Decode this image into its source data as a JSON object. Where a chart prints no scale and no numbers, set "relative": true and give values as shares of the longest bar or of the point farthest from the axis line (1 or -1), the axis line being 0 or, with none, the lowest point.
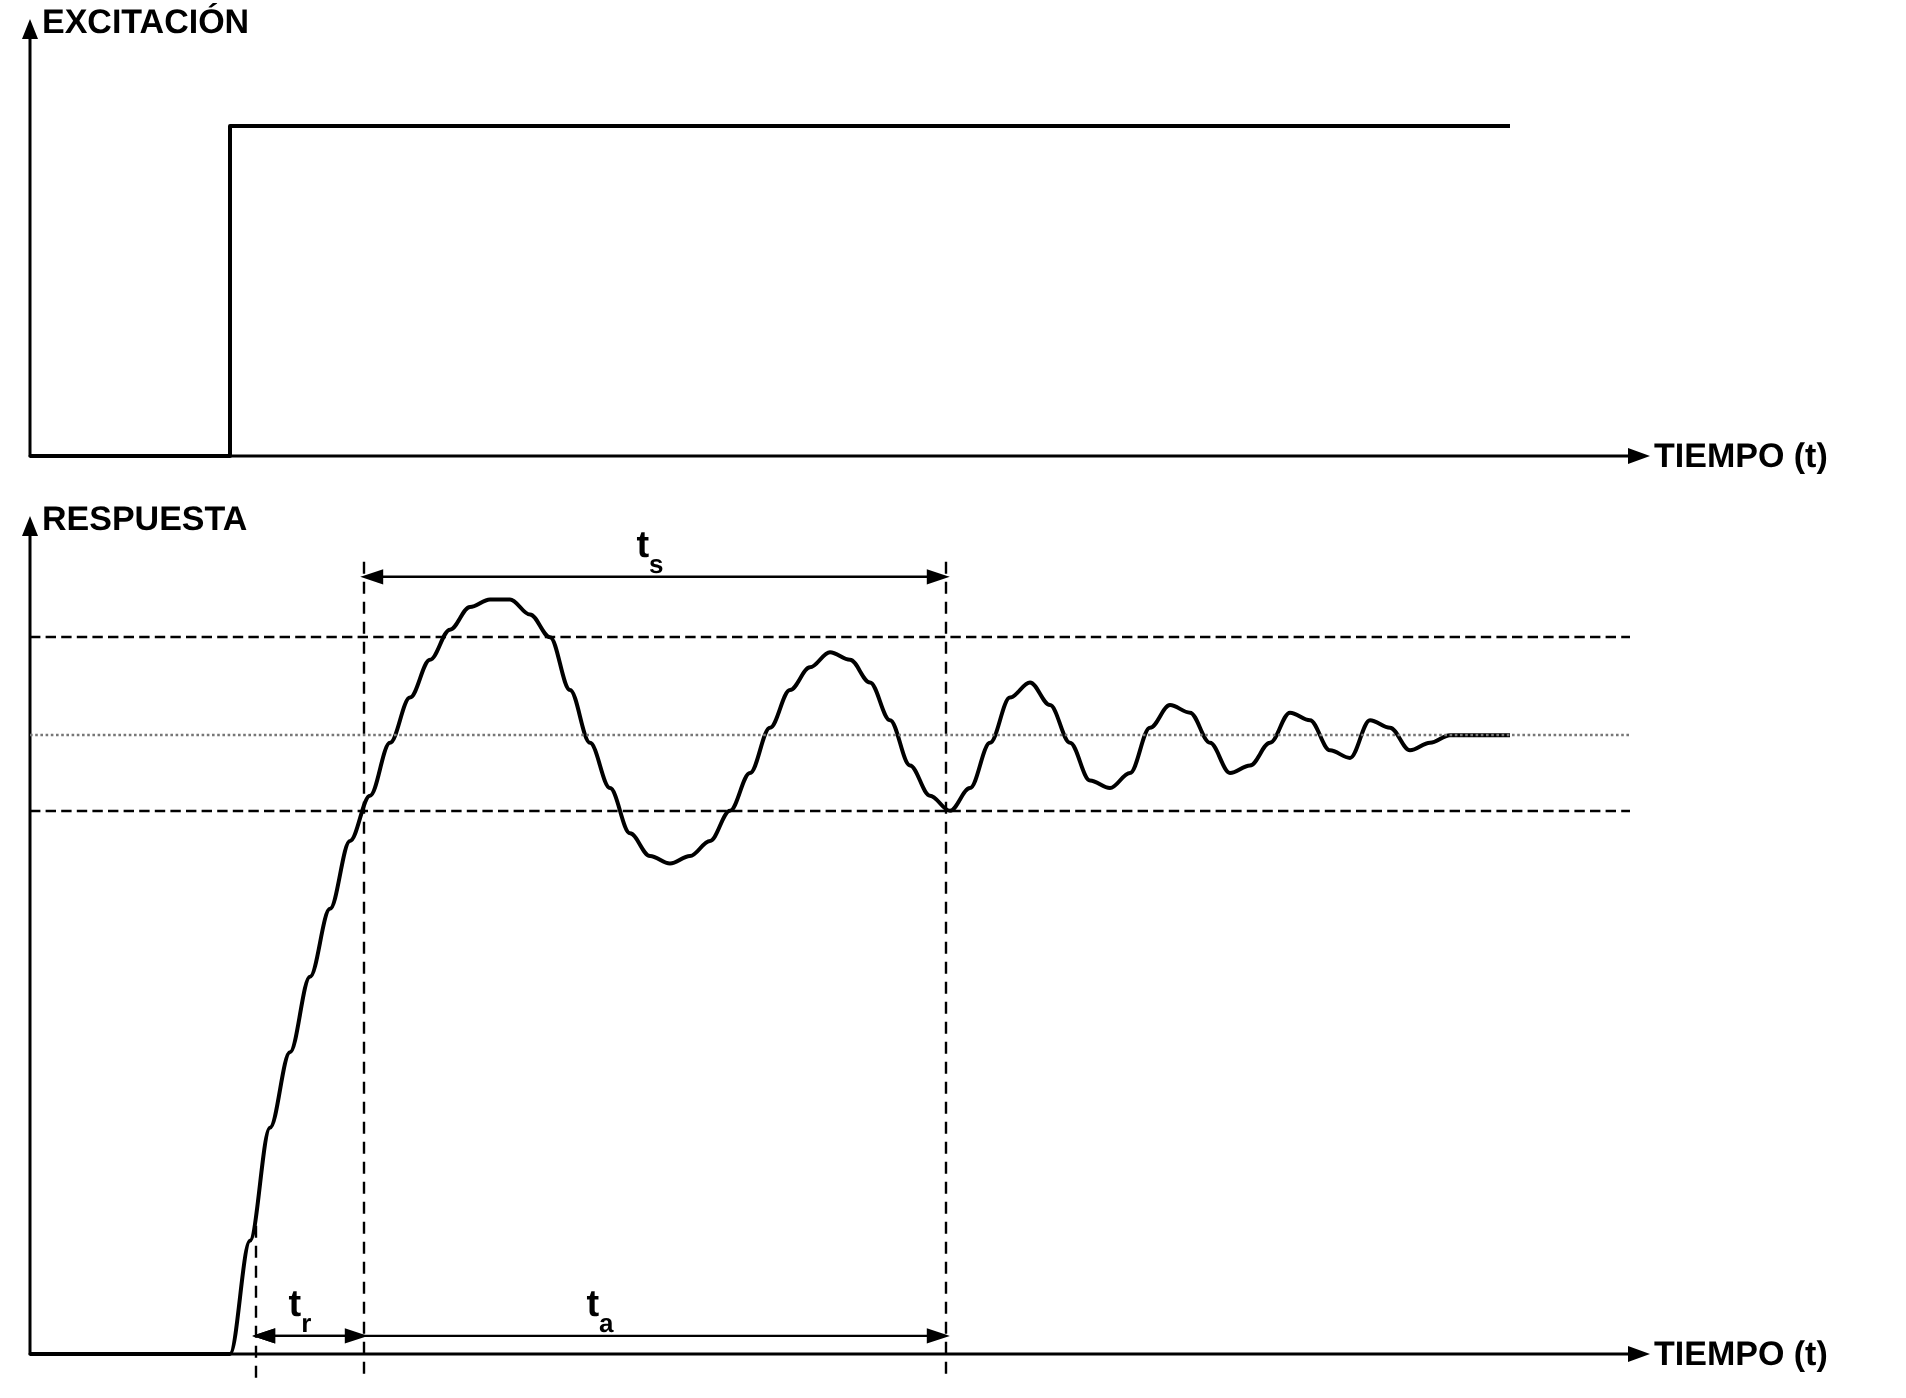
{
  "chart_data": [
    {
      "type": "step",
      "relative": true,
      "tick_labels": false,
      "ylabel": "EXCITACIÓN",
      "xlabel": "TIEMPO (t)",
      "color": "#000000",
      "categories": [
        null,
        null,
        null,
        null,
        null,
        null,
        null,
        null,
        null,
        null,
        null,
        null,
        null,
        null,
        null,
        null,
        null,
        null,
        null,
        null,
        null,
        null,
        null,
        null,
        null,
        null,
        null,
        null,
        null,
        null,
        null,
        null,
        null,
        null,
        null,
        null,
        null,
        null,
        null,
        null,
        null,
        null,
        null,
        null,
        null,
        null,
        null,
        null,
        null,
        null,
        null,
        null,
        null,
        null,
        null,
        null,
        null,
        null,
        null,
        null,
        null,
        null,
        null,
        null,
        null,
        null,
        null,
        null,
        null,
        null,
        null,
        null,
        null,
        null,
        null,
        null,
        null,
        null,
        null,
        null,
        null
      ],
      "values": [
        0,
        0,
        0,
        0,
        0,
        0,
        0,
        0,
        0,
        0,
        0,
        1,
        1,
        1,
        1,
        1,
        1,
        1,
        1,
        1,
        1,
        1,
        1,
        1,
        1,
        1,
        1,
        1,
        1,
        1,
        1,
        1,
        1,
        1,
        1,
        1,
        1,
        1,
        1,
        1,
        1,
        1,
        1,
        1,
        1,
        1,
        1,
        1,
        1,
        1,
        1,
        1,
        1,
        1,
        1,
        1,
        1,
        1,
        1,
        1,
        1,
        1,
        1,
        1,
        1,
        1,
        1,
        1,
        1,
        1,
        1,
        1,
        1,
        1,
        1,
        null,
        null,
        null,
        null,
        null,
        null
      ]
    },
    {
      "type": "line",
      "relative": true,
      "tick_labels": false,
      "ylabel": "RESPUESTA",
      "xlabel": "TIEMPO (t)",
      "color": "#000000",
      "categories": [
        null,
        null,
        null,
        null,
        null,
        null,
        null,
        null,
        null,
        null,
        null,
        null,
        null,
        null,
        null,
        null,
        null,
        null,
        null,
        null,
        null,
        null,
        null,
        null,
        null,
        null,
        null,
        null,
        null,
        null,
        null,
        null,
        null,
        null,
        null,
        null,
        null,
        null,
        null,
        null,
        null,
        null,
        null,
        null,
        null,
        null,
        null,
        null,
        null,
        null,
        null,
        null,
        null,
        null,
        null,
        null,
        null,
        null,
        null,
        null,
        null,
        null,
        null,
        null,
        null,
        null,
        null,
        null,
        null,
        null,
        null,
        null,
        null,
        null,
        null,
        null,
        null,
        null,
        null,
        null,
        null
      ],
      "values": [
        0,
        0,
        0,
        0,
        0,
        0,
        0,
        0,
        0,
        0,
        0,
        0.15,
        0.3,
        0.4,
        0.5,
        0.59,
        0.68,
        0.74,
        0.81,
        0.87,
        0.92,
        0.96,
        0.99,
        1,
        1,
        0.98,
        0.95,
        0.88,
        0.81,
        0.75,
        0.69,
        0.66,
        0.65,
        0.66,
        0.68,
        0.72,
        0.77,
        0.83,
        0.88,
        0.91,
        0.93,
        0.92,
        0.89,
        0.84,
        0.78,
        0.74,
        0.72,
        0.75,
        0.81,
        0.87,
        0.89,
        0.86,
        0.81,
        0.76,
        0.75,
        0.77,
        0.83,
        0.86,
        0.85,
        0.81,
        0.77,
        0.78,
        0.81,
        0.85,
        0.84,
        0.8,
        0.79,
        0.84,
        0.83,
        0.8,
        0.81,
        0.82,
        0.82,
        0.82,
        0.82,
        null,
        null,
        null,
        null,
        null,
        null
      ],
      "ref_lines": [
        {
          "axis": "y",
          "value": 0.95,
          "line_style": "dashed",
          "color": "#000000"
        },
        {
          "axis": "y",
          "value": 0.72,
          "line_style": "dashed",
          "color": "#000000"
        },
        {
          "axis": "y",
          "value": 0.82,
          "line_style": "dotted",
          "color": "#777777"
        }
      ],
      "annotations": [
        "t$_{s}$",
        "t$_{r}$",
        "t$_{a}$"
      ]
    }
  ]
}
